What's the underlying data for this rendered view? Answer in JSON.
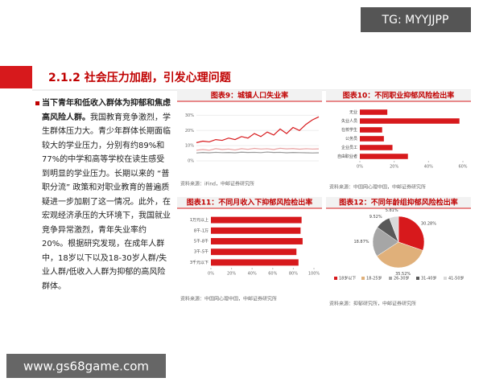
{
  "watermark_top": "TG: MYYJJPP",
  "section_title": "2.1.2 社会压力加剧，引发心理问题",
  "body": {
    "lead": "当下青年和低收入群体为抑郁和焦虑高风险人群。",
    "text": "我国教育竞争激烈，学生群体压力大。青少年群体长期面临较大的学业压力，分别有约89%和77%的中学和高等学校在读生感受到明显的学业压力。长期以来的 “普职分流” 政策和对职业教育的普遍质疑进一步加剧了这一情况。此外，在宏观经济承压的大环境下，我国就业竞争异常激烈，青年失业率约20%。根据研究发现，在成年人群中，18岁以下以及18-30岁人群/失业人群/低收入人群为抑郁的高风险群体。"
  },
  "chart_data": [
    {
      "type": "line",
      "title": "图表9：城镇人口失业率",
      "source": "资料来源：iFind，中邮证券研究所",
      "categories": [
        null,
        null,
        null,
        null,
        null,
        null,
        null,
        null,
        null,
        null,
        null,
        null,
        null,
        null,
        null,
        null,
        null,
        null,
        null,
        null
      ],
      "series": [
        {
          "color": "#d7191c",
          "values": [
            12,
            13,
            12.5,
            14,
            13.5,
            15,
            14,
            16,
            15,
            18,
            16,
            19,
            17,
            21,
            18,
            22,
            20,
            24,
            27,
            29
          ]
        },
        {
          "color": "#e8a0a0",
          "values": [
            7,
            7.5,
            7,
            8,
            7.5,
            7.8,
            7.2,
            8,
            7.6,
            8.2,
            7.8,
            8,
            7.5,
            8.3,
            7.9,
            8.1,
            7.7,
            8,
            7.8,
            7.9
          ]
        },
        {
          "color": "#999999",
          "values": [
            5.2,
            5.5,
            5.3,
            5.6,
            5.4,
            5.5,
            5.3,
            5.7,
            5.5,
            5.6,
            5.4,
            5.8,
            5.5,
            5.6,
            5.3,
            5.5,
            5.4,
            5.3,
            5.2,
            5.3
          ]
        }
      ],
      "ylim": [
        0,
        35
      ],
      "yticks": [
        {
          "value": 0,
          "label": "0%"
        },
        {
          "value": 10,
          "label": "10%"
        },
        {
          "value": 20,
          "label": "20%"
        },
        {
          "value": 30,
          "label": "30%"
        }
      ]
    },
    {
      "type": "hbar",
      "title": "图表10：不同职业抑郁风险检出率",
      "source": "资料来源：中国网心理中国，中邮证券研究所",
      "categories": [
        "无业",
        "失业人员",
        "在校学生",
        "公务员",
        "企业员工",
        "自由职业者"
      ],
      "values": [
        16,
        58,
        13,
        14,
        19,
        28
      ],
      "color": "#d7191c",
      "xlim": [
        0,
        60
      ],
      "xticks": [
        {
          "value": 0,
          "label": "0%"
        },
        {
          "value": 20,
          "label": "20%"
        },
        {
          "value": 40,
          "label": "40%"
        },
        {
          "value": 60,
          "label": "60%"
        }
      ]
    },
    {
      "type": "hbar",
      "title": "图表11：不同月收入下抑郁风险检出率",
      "source": "资料来源：中国网心理中国，中邮证券研究所",
      "categories": [
        "1万元以上",
        "8千-1万",
        "5千-8千",
        "3千-5千",
        "3千元以下"
      ],
      "values": [
        88,
        87,
        89,
        83,
        85
      ],
      "color": "#d7191c",
      "xlim": [
        0,
        100
      ],
      "xticks": [
        {
          "value": 0,
          "label": "0%"
        },
        {
          "value": 20,
          "label": "20%"
        },
        {
          "value": 40,
          "label": "40%"
        },
        {
          "value": 60,
          "label": "60%"
        },
        {
          "value": 80,
          "label": "80%"
        },
        {
          "value": 100,
          "label": "100%"
        }
      ]
    },
    {
      "type": "pie",
      "title": "图表12：不同年龄组抑郁风险检出率",
      "source": "资料来源：抑郁研究所，中邮证券研究所",
      "categories": [
        "18岁以下",
        "18-25岁",
        "26-30岁",
        "31-40岁",
        "41-50岁"
      ],
      "values": [
        30.28,
        35.52,
        18.87,
        9.52,
        5.81
      ],
      "value_labels": [
        "30.28%",
        "35.52%",
        "18.87%",
        "9.52%",
        "5.81%"
      ],
      "colors": [
        "#d7191c",
        "#e0b07a",
        "#a6a6a6",
        "#595959",
        "#d9d9d9"
      ]
    }
  ],
  "watermark_bottom": "www.gs68game.com"
}
